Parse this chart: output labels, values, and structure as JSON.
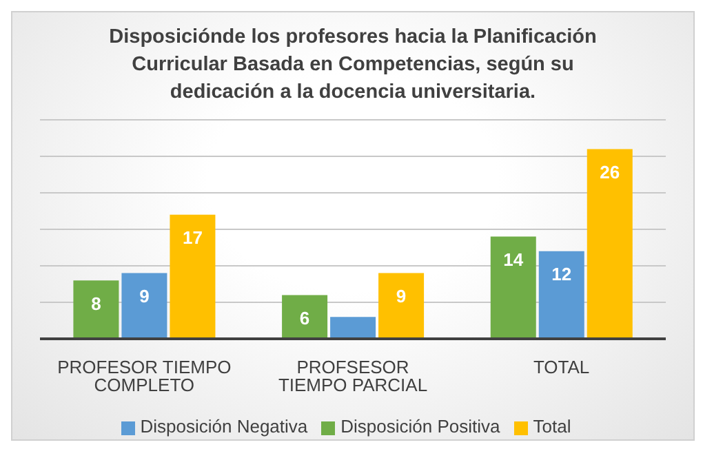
{
  "chart_data": {
    "type": "bar",
    "title": "Disposiciónde los profesores hacia la Planificación Curricular Basada en Competencias, según su dedicación a la docencia universitaria.",
    "categories": [
      "PROFESOR TIEMPO COMPLETO",
      "PROFSESOR TIEMPO PARCIAL",
      "TOTAL"
    ],
    "series": [
      {
        "name": "Disposición Positiva",
        "color": "#70ad47",
        "values": [
          8,
          6,
          14
        ],
        "value_labels": [
          "8",
          "6",
          "14"
        ]
      },
      {
        "name": "Disposición Negativa",
        "color": "#5b9bd5",
        "values": [
          9,
          3,
          12
        ],
        "value_labels": [
          "9",
          null,
          "12"
        ]
      },
      {
        "name": "Total",
        "color": "#ffc000",
        "values": [
          17,
          9,
          26
        ],
        "value_labels": [
          "17",
          "9",
          "26"
        ]
      }
    ],
    "ylim": [
      0,
      30
    ],
    "yticks": [
      {
        "value": 0,
        "label": null
      },
      {
        "value": 5,
        "label": null
      },
      {
        "value": 10,
        "label": null
      },
      {
        "value": 15,
        "label": null
      },
      {
        "value": 20,
        "label": null
      },
      {
        "value": 25,
        "label": null
      },
      {
        "value": 30,
        "label": null
      }
    ],
    "tick_labels": "x",
    "grid": "y",
    "legend": "bottom"
  }
}
